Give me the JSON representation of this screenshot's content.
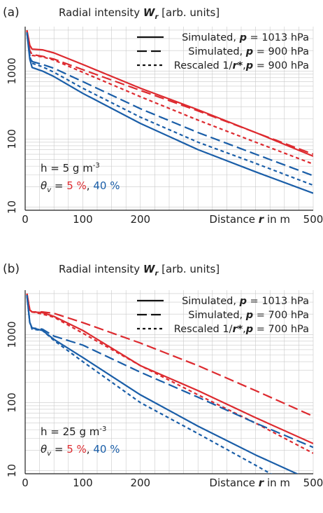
{
  "chart_data": [
    {
      "panel_label": "(a)",
      "type": "line",
      "title_prefix": "Radial intensity",
      "title_symbol": "W",
      "title_sub": "r",
      "title_suffix": "[arb. units]",
      "xlabel_prefix": "Distance",
      "xlabel_symbol": "r",
      "xlabel_suffix": "in m",
      "xlim": [
        0,
        500
      ],
      "ylim": [
        9,
        4500
      ],
      "yscale": "log",
      "x_ticks": [
        "0",
        "100",
        "200",
        "500"
      ],
      "y_ticks": [
        "10",
        "100",
        "1000"
      ],
      "grid": true,
      "legend": [
        {
          "style": "solid",
          "label_a": "Simulated,",
          "p_sym": "p",
          "label_b": "= 1013 hPa"
        },
        {
          "style": "dashed",
          "label_a": "Simulated,",
          "p_sym": "p",
          "label_b": "= 900 hPa"
        },
        {
          "style": "dotted",
          "label_a": "Rescaled 1/",
          "r_sym": "r*",
          "p_sym": "p",
          "label_b": "= 900 hPa"
        }
      ],
      "annotation_h": "h = 5 g m",
      "annotation_h_exp": "-3",
      "annotation_theta_sym": "θ",
      "annotation_theta_sub": "v",
      "annotation_eq": " = ",
      "annotation_v1": "5 %",
      "annotation_sep": ", ",
      "annotation_v2": "40 %",
      "colors": {
        "red": "#dd2a2f",
        "blue": "#1a5ea8"
      },
      "series": [
        {
          "color": "red",
          "style": "solid",
          "x": [
            3,
            8,
            12,
            30,
            50,
            100,
            200,
            300,
            400,
            500
          ],
          "y": [
            4000,
            2400,
            2100,
            2050,
            1850,
            1250,
            560,
            270,
            125,
            56
          ]
        },
        {
          "color": "red",
          "style": "dashed",
          "x": [
            3,
            8,
            12,
            30,
            50,
            100,
            200,
            300,
            400,
            500
          ],
          "y": [
            3900,
            2000,
            1750,
            1650,
            1500,
            1050,
            520,
            260,
            125,
            60
          ]
        },
        {
          "color": "red",
          "style": "dotted",
          "x": [
            3,
            8,
            12,
            30,
            50,
            100,
            200,
            300,
            400,
            500
          ],
          "y": [
            3900,
            2000,
            1700,
            1620,
            1450,
            960,
            420,
            190,
            90,
            43
          ]
        },
        {
          "color": "blue",
          "style": "solid",
          "x": [
            3,
            8,
            12,
            30,
            50,
            100,
            200,
            300,
            400,
            500
          ],
          "y": [
            3700,
            1500,
            1130,
            1000,
            830,
            470,
            170,
            70,
            33,
            16
          ]
        },
        {
          "color": "blue",
          "style": "dashed",
          "x": [
            3,
            8,
            12,
            30,
            50,
            100,
            200,
            300,
            400,
            500
          ],
          "y": [
            3700,
            1700,
            1380,
            1250,
            1100,
            700,
            280,
            125,
            60,
            29
          ]
        },
        {
          "color": "blue",
          "style": "dotted",
          "x": [
            3,
            8,
            12,
            30,
            50,
            100,
            200,
            300,
            400,
            500
          ],
          "y": [
            3700,
            1650,
            1300,
            1160,
            960,
            560,
            210,
            90,
            44,
            21
          ]
        }
      ]
    },
    {
      "panel_label": "(b)",
      "type": "line",
      "title_prefix": "Radial intensity",
      "title_symbol": "W",
      "title_sub": "r",
      "title_suffix": "[arb. units]",
      "xlabel_prefix": "Distance",
      "xlabel_symbol": "r",
      "xlabel_suffix": "in m",
      "xlim": [
        0,
        500
      ],
      "ylim": [
        9,
        4500
      ],
      "yscale": "log",
      "x_ticks": [
        "0",
        "100",
        "200",
        "500"
      ],
      "y_ticks": [
        "10",
        "100",
        "1000"
      ],
      "grid": true,
      "legend": [
        {
          "style": "solid",
          "label_a": "Simulated,",
          "p_sym": "p",
          "label_b": "= 1013 hPa"
        },
        {
          "style": "dashed",
          "label_a": "Simulated,",
          "p_sym": "p",
          "label_b": "= 700 hPa"
        },
        {
          "style": "dotted",
          "label_a": "Rescaled 1/",
          "r_sym": "r*",
          "p_sym": "p",
          "label_b": "= 700 hPa"
        }
      ],
      "annotation_h": "h = 25 g m",
      "annotation_h_exp": "-3",
      "annotation_theta_sym": "θ",
      "annotation_theta_sub": "v",
      "annotation_eq": " = ",
      "annotation_v1": "5 %",
      "annotation_sep": ", ",
      "annotation_v2": "40 %",
      "colors": {
        "red": "#dd2a2f",
        "blue": "#1a5ea8"
      },
      "series": [
        {
          "color": "red",
          "style": "solid",
          "x": [
            3,
            8,
            12,
            30,
            50,
            100,
            200,
            300,
            400,
            500
          ],
          "y": [
            4000,
            2300,
            2150,
            2100,
            1850,
            1150,
            350,
            150,
            60,
            25
          ]
        },
        {
          "color": "red",
          "style": "dashed",
          "x": [
            3,
            8,
            12,
            30,
            50,
            100,
            200,
            300,
            400,
            500
          ],
          "y": [
            4000,
            2300,
            2150,
            2150,
            2050,
            1500,
            750,
            350,
            150,
            63
          ]
        },
        {
          "color": "red",
          "style": "dotted",
          "x": [
            3,
            8,
            12,
            30,
            50,
            100,
            200,
            300,
            400,
            500
          ],
          "y": [
            4000,
            2300,
            2150,
            2000,
            1800,
            1050,
            350,
            130,
            50,
            18
          ]
        },
        {
          "color": "blue",
          "style": "solid",
          "x": [
            3,
            8,
            12,
            30,
            50,
            100,
            200,
            300,
            400,
            500
          ],
          "y": [
            3800,
            1500,
            1250,
            1150,
            850,
            460,
            130,
            45,
            17,
            7
          ]
        },
        {
          "color": "blue",
          "style": "dashed",
          "x": [
            3,
            8,
            12,
            30,
            50,
            100,
            200,
            300,
            400,
            500
          ],
          "y": [
            3800,
            1500,
            1250,
            1200,
            950,
            700,
            280,
            120,
            50,
            22
          ]
        },
        {
          "color": "blue",
          "style": "dotted",
          "x": [
            3,
            8,
            12,
            30,
            50,
            100,
            200,
            300,
            400,
            500
          ],
          "y": [
            3800,
            1500,
            1200,
            1150,
            820,
            400,
            100,
            35,
            12,
            4
          ]
        }
      ]
    }
  ]
}
